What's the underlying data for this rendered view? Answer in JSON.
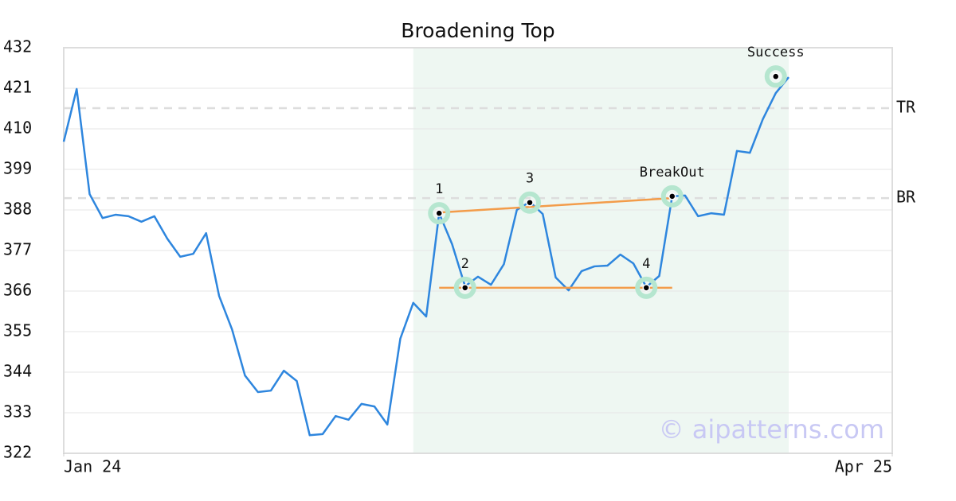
{
  "chart_data": {
    "type": "line",
    "title": "Broadening Top",
    "series": [
      {
        "color": "#2e86de",
        "values": [
          406.5,
          420.8,
          392.3,
          385.8,
          386.7,
          386.3,
          384.8,
          386.3,
          380.2,
          375.3,
          376.1,
          381.7,
          364.7,
          355.6,
          343.1,
          338.6,
          339.0,
          344.4,
          341.6,
          326.9,
          327.2,
          332.1,
          331.1,
          335.4,
          334.7,
          329.8,
          353.1,
          362.8,
          359.1,
          387.1,
          378.7,
          367.3,
          369.9,
          367.7,
          373.3,
          388.0,
          390.2,
          386.9,
          369.7,
          366.2,
          371.4,
          372.7,
          372.9,
          375.9,
          373.5,
          367.1,
          370.1,
          391.7,
          391.9,
          386.3,
          387.1,
          386.7,
          404.0,
          403.5,
          412.6,
          419.7,
          424.0
        ]
      }
    ],
    "xlim": [
      0,
      64
    ],
    "xticks": [
      {
        "value": 0,
        "label": "Jan 24"
      },
      {
        "value": 64,
        "label": "Apr 25"
      }
    ],
    "ylim": [
      322,
      432
    ],
    "yticks": [
      322,
      333,
      344,
      355,
      366,
      377,
      388,
      399,
      410,
      421,
      432
    ],
    "grid": true,
    "highlight": {
      "x": [
        27,
        56
      ],
      "color": "#eef7f2"
    },
    "levels": [
      {
        "label": "TR",
        "value": 415.6
      },
      {
        "label": "BR",
        "value": 391.2
      }
    ],
    "trendlines": [
      {
        "color": "#f39c4a",
        "x": [
          29,
          47
        ],
        "y": [
          387.3,
          391.2
        ]
      },
      {
        "color": "#f39c4a",
        "x": [
          29,
          47
        ],
        "y": [
          366.9,
          366.9
        ]
      }
    ],
    "markers": [
      {
        "label": "1",
        "x": 29,
        "y": 387.1
      },
      {
        "label": "2",
        "x": 31,
        "y": 366.9
      },
      {
        "label": "3",
        "x": 36,
        "y": 390.0
      },
      {
        "label": "4",
        "x": 45,
        "y": 366.9
      },
      {
        "label": "BreakOut",
        "x": 47,
        "y": 391.7
      },
      {
        "label": "Success",
        "x": 55,
        "y": 424.2
      }
    ],
    "watermark": "© aipatterns.com"
  }
}
